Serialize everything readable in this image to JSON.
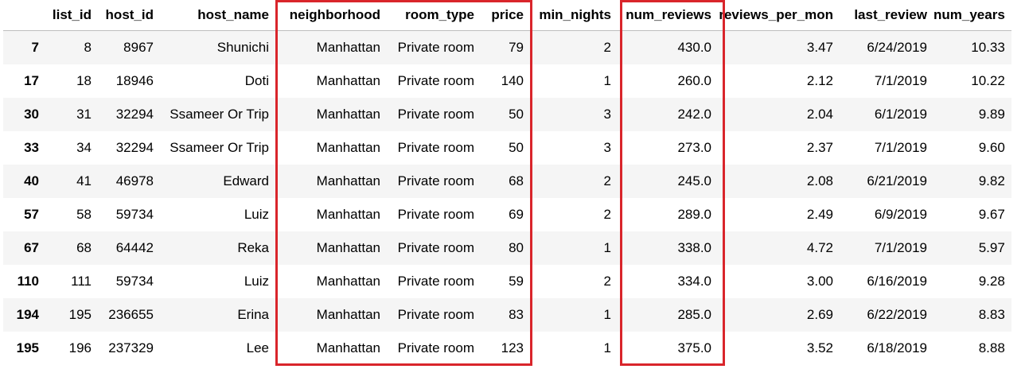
{
  "table": {
    "columns": [
      "",
      "list_id",
      "host_id",
      "host_name",
      "neighborhood",
      "room_type",
      "price",
      "min_nights",
      "num_reviews",
      "reviews_per_mon",
      "last_review",
      "num_years"
    ],
    "rows": [
      [
        "7",
        "8",
        "8967",
        "Shunichi",
        "Manhattan",
        "Private room",
        "79",
        "2",
        "430.0",
        "3.47",
        "6/24/2019",
        "10.33"
      ],
      [
        "17",
        "18",
        "18946",
        "Doti",
        "Manhattan",
        "Private room",
        "140",
        "1",
        "260.0",
        "2.12",
        "7/1/2019",
        "10.22"
      ],
      [
        "30",
        "31",
        "32294",
        "Ssameer Or Trip",
        "Manhattan",
        "Private room",
        "50",
        "3",
        "242.0",
        "2.04",
        "6/1/2019",
        "9.89"
      ],
      [
        "33",
        "34",
        "32294",
        "Ssameer Or Trip",
        "Manhattan",
        "Private room",
        "50",
        "3",
        "273.0",
        "2.37",
        "7/1/2019",
        "9.60"
      ],
      [
        "40",
        "41",
        "46978",
        "Edward",
        "Manhattan",
        "Private room",
        "68",
        "2",
        "245.0",
        "2.08",
        "6/21/2019",
        "9.82"
      ],
      [
        "57",
        "58",
        "59734",
        "Luiz",
        "Manhattan",
        "Private room",
        "69",
        "2",
        "289.0",
        "2.49",
        "6/9/2019",
        "9.67"
      ],
      [
        "67",
        "68",
        "64442",
        "Reka",
        "Manhattan",
        "Private room",
        "80",
        "1",
        "338.0",
        "4.72",
        "7/1/2019",
        "5.97"
      ],
      [
        "110",
        "111",
        "59734",
        "Luiz",
        "Manhattan",
        "Private room",
        "59",
        "2",
        "334.0",
        "3.00",
        "6/16/2019",
        "9.28"
      ],
      [
        "194",
        "195",
        "236655",
        "Erina",
        "Manhattan",
        "Private room",
        "83",
        "1",
        "285.0",
        "2.69",
        "6/22/2019",
        "8.83"
      ],
      [
        "195",
        "196",
        "237329",
        "Lee",
        "Manhattan",
        "Private room",
        "123",
        "1",
        "375.0",
        "3.52",
        "6/18/2019",
        "8.88"
      ]
    ]
  },
  "highlight_color": "#d9252b",
  "stripe_color": "#f5f5f5"
}
